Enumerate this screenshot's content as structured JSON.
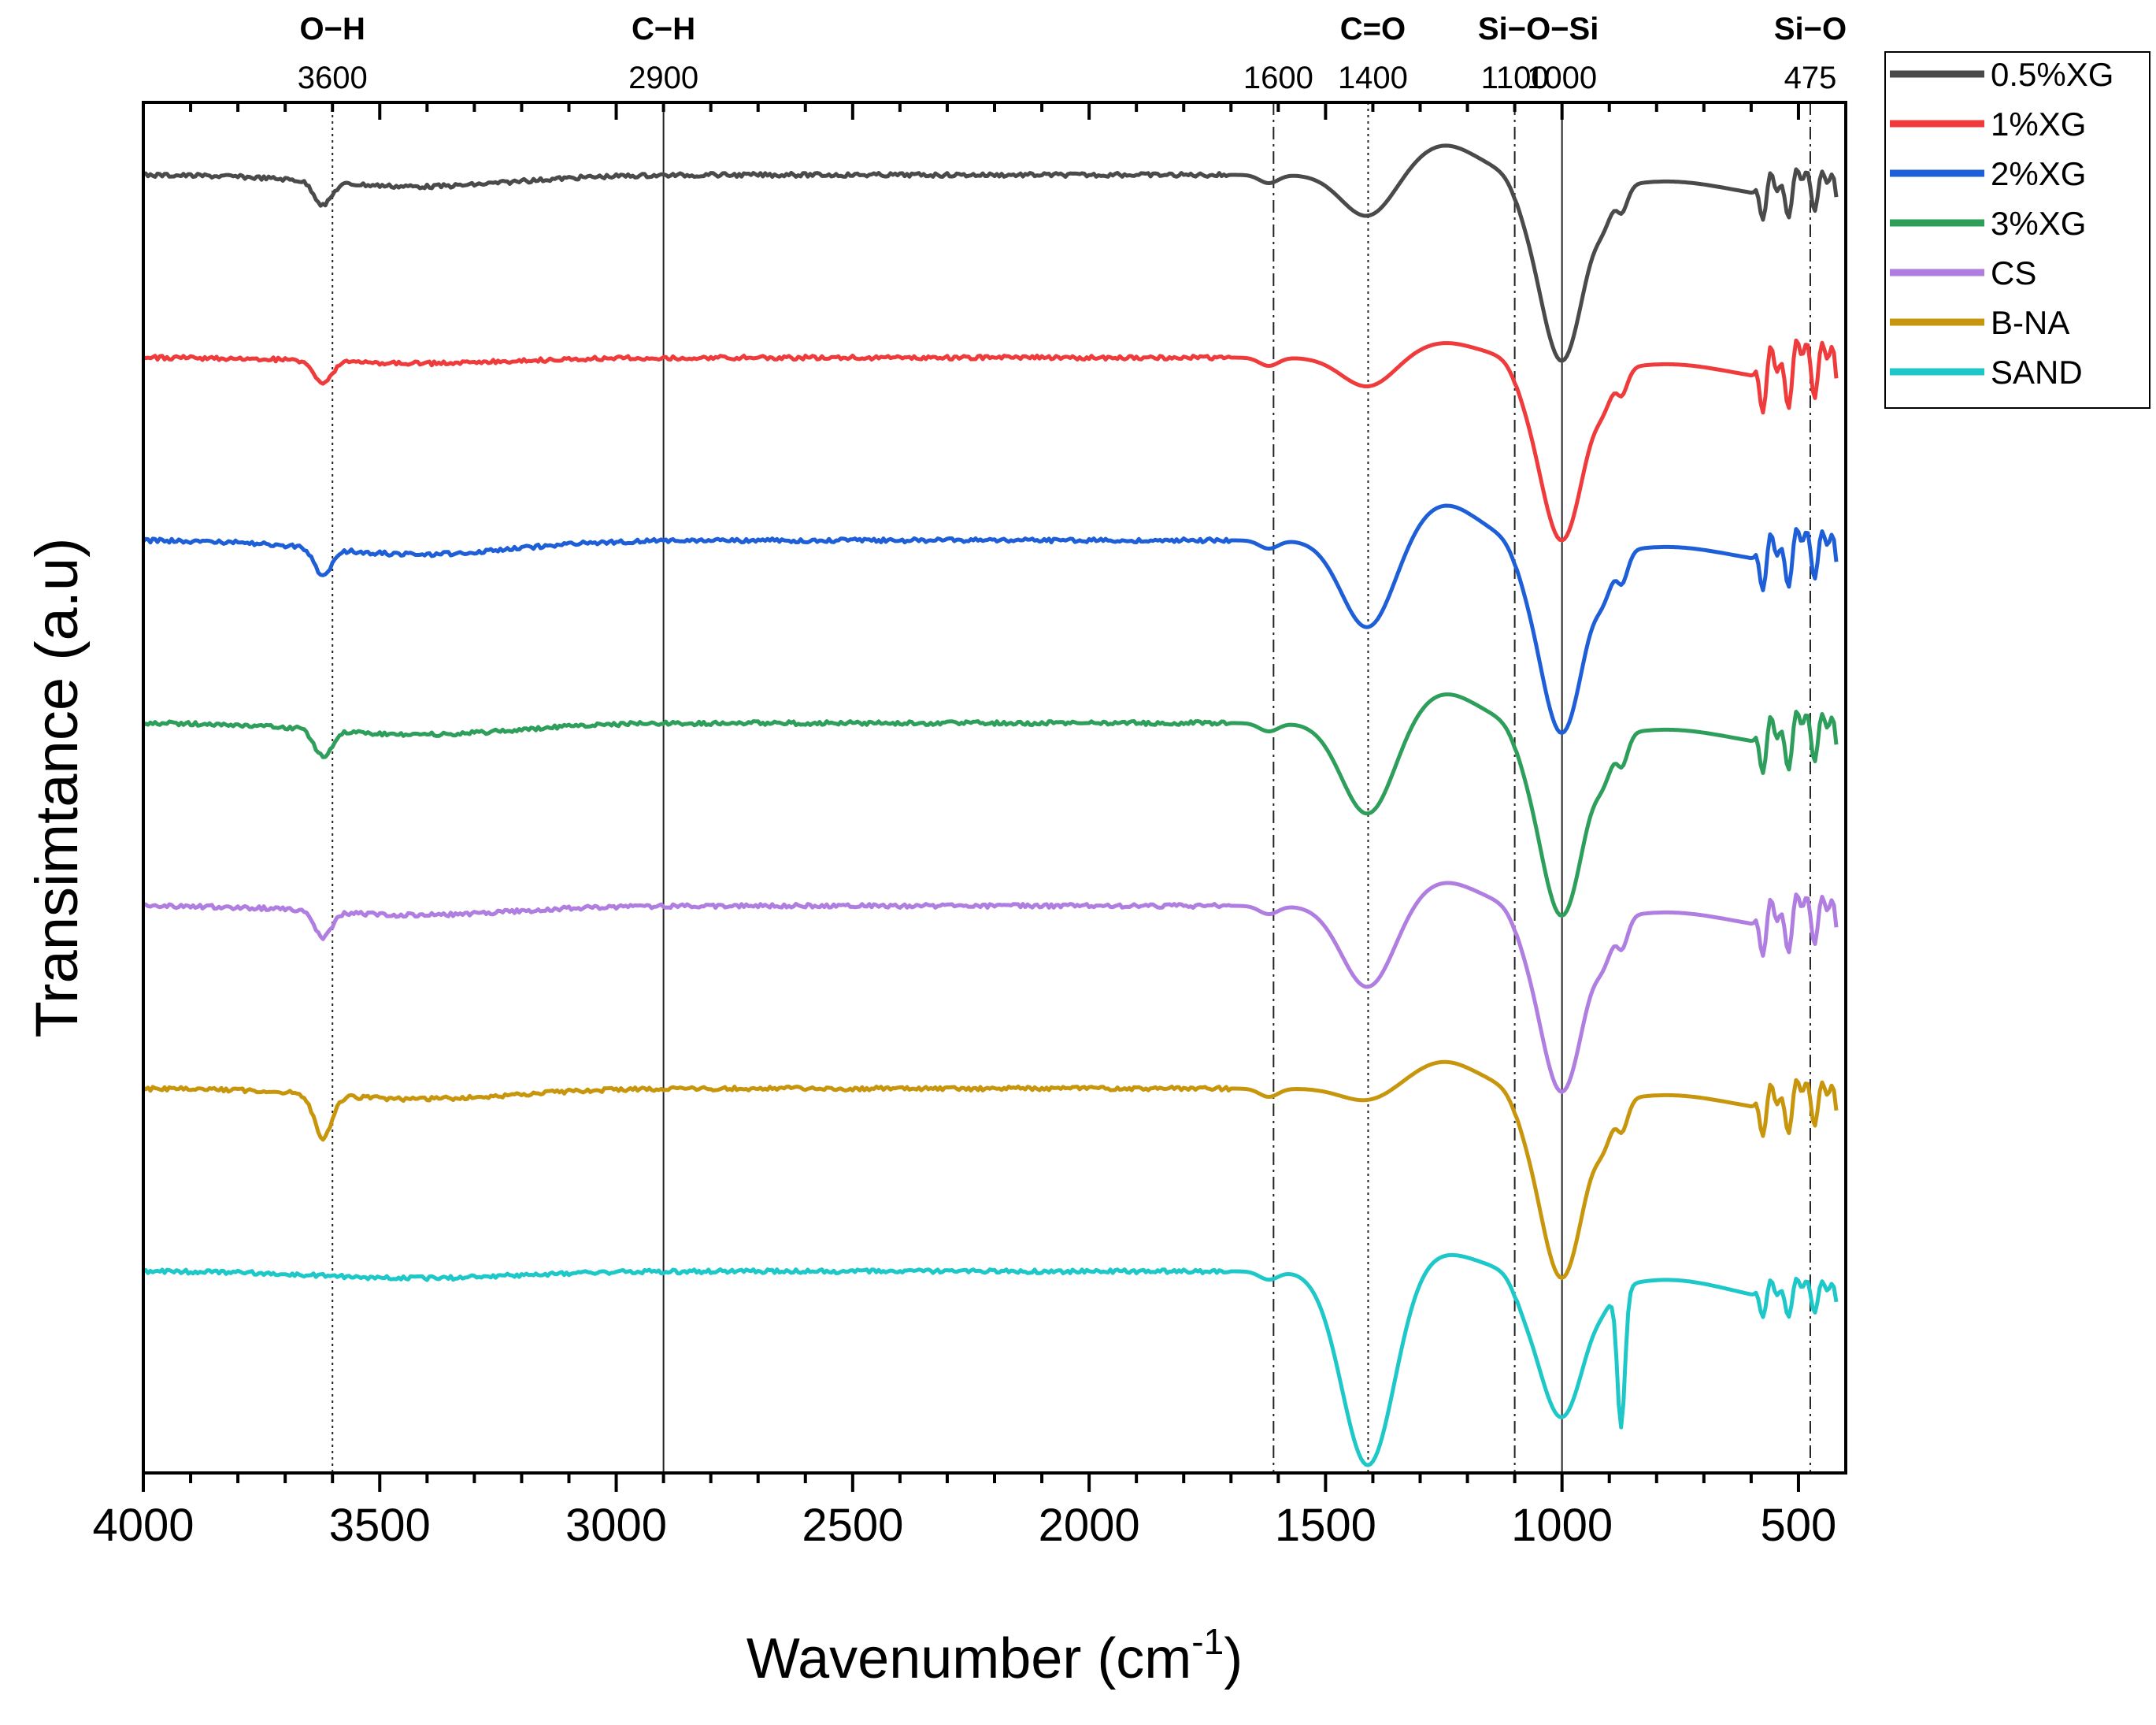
{
  "chart_data": {
    "type": "line",
    "title": "",
    "xlabel": "Wavenumber (cm",
    "xlabel_sup": "-1",
    "xlabel_close": ")",
    "ylabel": "Transimtance (a.u)",
    "xlim": [
      4000,
      400
    ],
    "xticks": [
      4000,
      3500,
      3000,
      2500,
      2000,
      1500,
      1000,
      500
    ],
    "xtick_labels": [
      "4000",
      "3500",
      "3000",
      "2500",
      "2000",
      "1500",
      "1000",
      "500"
    ],
    "top_ticks": [
      {
        "value": 3600,
        "label": "3600"
      },
      {
        "value": 2900,
        "label": "2900"
      },
      {
        "value": 1600,
        "label": "1600"
      },
      {
        "value": 1400,
        "label": "1400"
      },
      {
        "value": 1100,
        "label": "1100"
      },
      {
        "value": 1000,
        "label": "1000"
      },
      {
        "value": 475,
        "label": "475"
      }
    ],
    "band_labels": [
      {
        "label": "O−H",
        "at": 3600
      },
      {
        "label": "C−H",
        "at": 2900
      },
      {
        "label": "C=O",
        "at": 1400
      },
      {
        "label": "Si−O−Si",
        "at": 1050
      },
      {
        "label": "Si−O",
        "at": 475
      }
    ],
    "reference_lines": [
      {
        "value": 3600,
        "style": "dotted"
      },
      {
        "value": 2900,
        "style": "solid"
      },
      {
        "value": 1610,
        "style": "dashdot"
      },
      {
        "value": 1410,
        "style": "dotted"
      },
      {
        "value": 1100,
        "style": "dashdot"
      },
      {
        "value": 1000,
        "style": "solid"
      },
      {
        "value": 475,
        "style": "dashdot"
      }
    ],
    "series": [
      {
        "name": "0.5%XG",
        "color": "#4a4a4a",
        "baseline": 0,
        "oh": 0.7,
        "bump": 1.0,
        "co": 1.3,
        "shoulder": 1.0,
        "main": 5.0,
        "fp": 1.0,
        "quartz": 0.2,
        "low": 1.0
      },
      {
        "name": "1%XG",
        "color": "#ef3b3b",
        "baseline": 1,
        "oh": 0.7,
        "bump": 0.5,
        "co": 0.9,
        "shoulder": 1.0,
        "main": 4.9,
        "fp": 1.0,
        "quartz": 0.2,
        "low": 1.4
      },
      {
        "name": "2%XG",
        "color": "#1e5fd8",
        "baseline": 2,
        "oh": 0.8,
        "bump": 1.2,
        "co": 2.7,
        "shoulder": 1.0,
        "main": 5.2,
        "fp": 1.3,
        "quartz": 0.2,
        "low": 1.2
      },
      {
        "name": "3%XG",
        "color": "#2e9e5b",
        "baseline": 3,
        "oh": 0.8,
        "bump": 1.0,
        "co": 2.8,
        "shoulder": 1.0,
        "main": 5.2,
        "fp": 1.3,
        "quartz": 0.2,
        "low": 1.2
      },
      {
        "name": "CS",
        "color": "#b07ee0",
        "baseline": 4,
        "oh": 0.8,
        "bump": 0.8,
        "co": 2.5,
        "shoulder": 1.0,
        "main": 5.0,
        "fp": 1.3,
        "quartz": 0.2,
        "low": 1.2
      },
      {
        "name": "B-NA",
        "color": "#c8960c",
        "baseline": 5,
        "oh": 1.3,
        "bump": 0.9,
        "co": 0.4,
        "shoulder": 1.0,
        "main": 5.1,
        "fp": 1.3,
        "quartz": 0.2,
        "low": 1.1
      },
      {
        "name": "SAND",
        "color": "#1fc8c8",
        "baseline": 6,
        "oh": 0.0,
        "bump": 0.6,
        "co": 5.9,
        "shoulder": 1.3,
        "main": 3.6,
        "fp": 0.4,
        "quartz": 4.0,
        "low": 0.8
      }
    ],
    "grid": false,
    "legend_position": "top-right-outside"
  }
}
